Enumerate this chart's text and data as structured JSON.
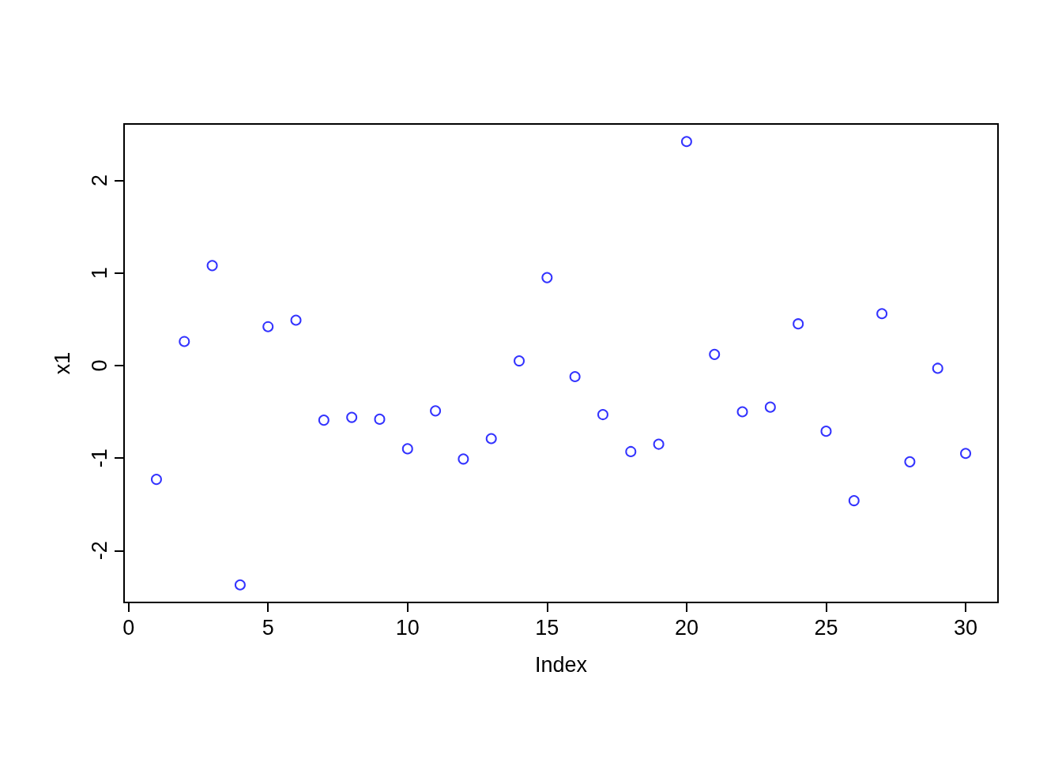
{
  "chart_data": {
    "type": "scatter",
    "xlabel": "Index",
    "ylabel": "x1",
    "x": [
      1,
      2,
      3,
      4,
      5,
      6,
      7,
      8,
      9,
      10,
      11,
      12,
      13,
      14,
      15,
      16,
      17,
      18,
      19,
      20,
      21,
      22,
      23,
      24,
      25,
      26,
      27,
      28,
      29,
      30
    ],
    "values": [
      -1.23,
      0.26,
      1.08,
      -2.37,
      0.42,
      0.49,
      -0.59,
      -0.56,
      -0.58,
      -0.9,
      -0.49,
      -1.01,
      -0.79,
      0.05,
      0.95,
      -0.12,
      -0.53,
      -0.93,
      -0.85,
      2.42,
      0.12,
      -0.5,
      -0.45,
      0.45,
      -0.71,
      -1.46,
      0.56,
      -1.04,
      -0.03,
      -0.95
    ],
    "color": "#0000ff",
    "marker": "circle",
    "xlim": [
      -0.16,
      31.16
    ],
    "xticks": [
      0,
      5,
      10,
      15,
      20,
      25,
      30
    ],
    "ylim": [
      -2.56,
      2.61
    ],
    "yticks": [
      -2,
      -1,
      0,
      1,
      2
    ],
    "grid": false
  }
}
